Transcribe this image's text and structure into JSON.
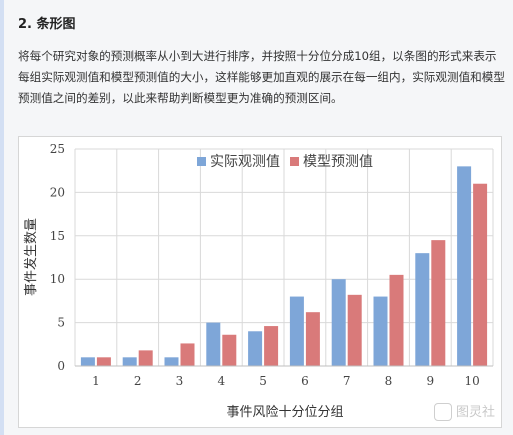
{
  "section": {
    "heading": "2. 条形图",
    "paragraph": "将每个研究对象的预测概率从小到大进行排序，并按照十分位分成10组，以条图的形式来表示每组实际观测值和模型预测值的大小，这样能够更加直观的展示在每一组内，实际观测值和模型预测值之间的差别，以此来帮助判断模型更为准确的预测区间。"
  },
  "chart_data": {
    "type": "bar",
    "categories": [
      "1",
      "2",
      "3",
      "4",
      "5",
      "6",
      "7",
      "8",
      "9",
      "10"
    ],
    "series": [
      {
        "name": "实际观测值",
        "color": "#7ea6d8",
        "values": [
          1,
          1,
          1,
          5,
          4,
          8,
          10,
          8,
          13,
          23
        ]
      },
      {
        "name": "模型预测值",
        "color": "#d97a7a",
        "values": [
          1,
          1.8,
          2.6,
          3.6,
          4.6,
          6.2,
          8.2,
          10.5,
          14.5,
          21
        ]
      }
    ],
    "xlabel": "事件风险十分位分组",
    "ylabel": "事件发生数量",
    "ylim": [
      0,
      25
    ],
    "yticks": [
      0,
      5,
      10,
      15,
      20,
      25
    ],
    "grid": true,
    "legend_position": "top"
  },
  "watermark": {
    "text": "图灵社"
  }
}
